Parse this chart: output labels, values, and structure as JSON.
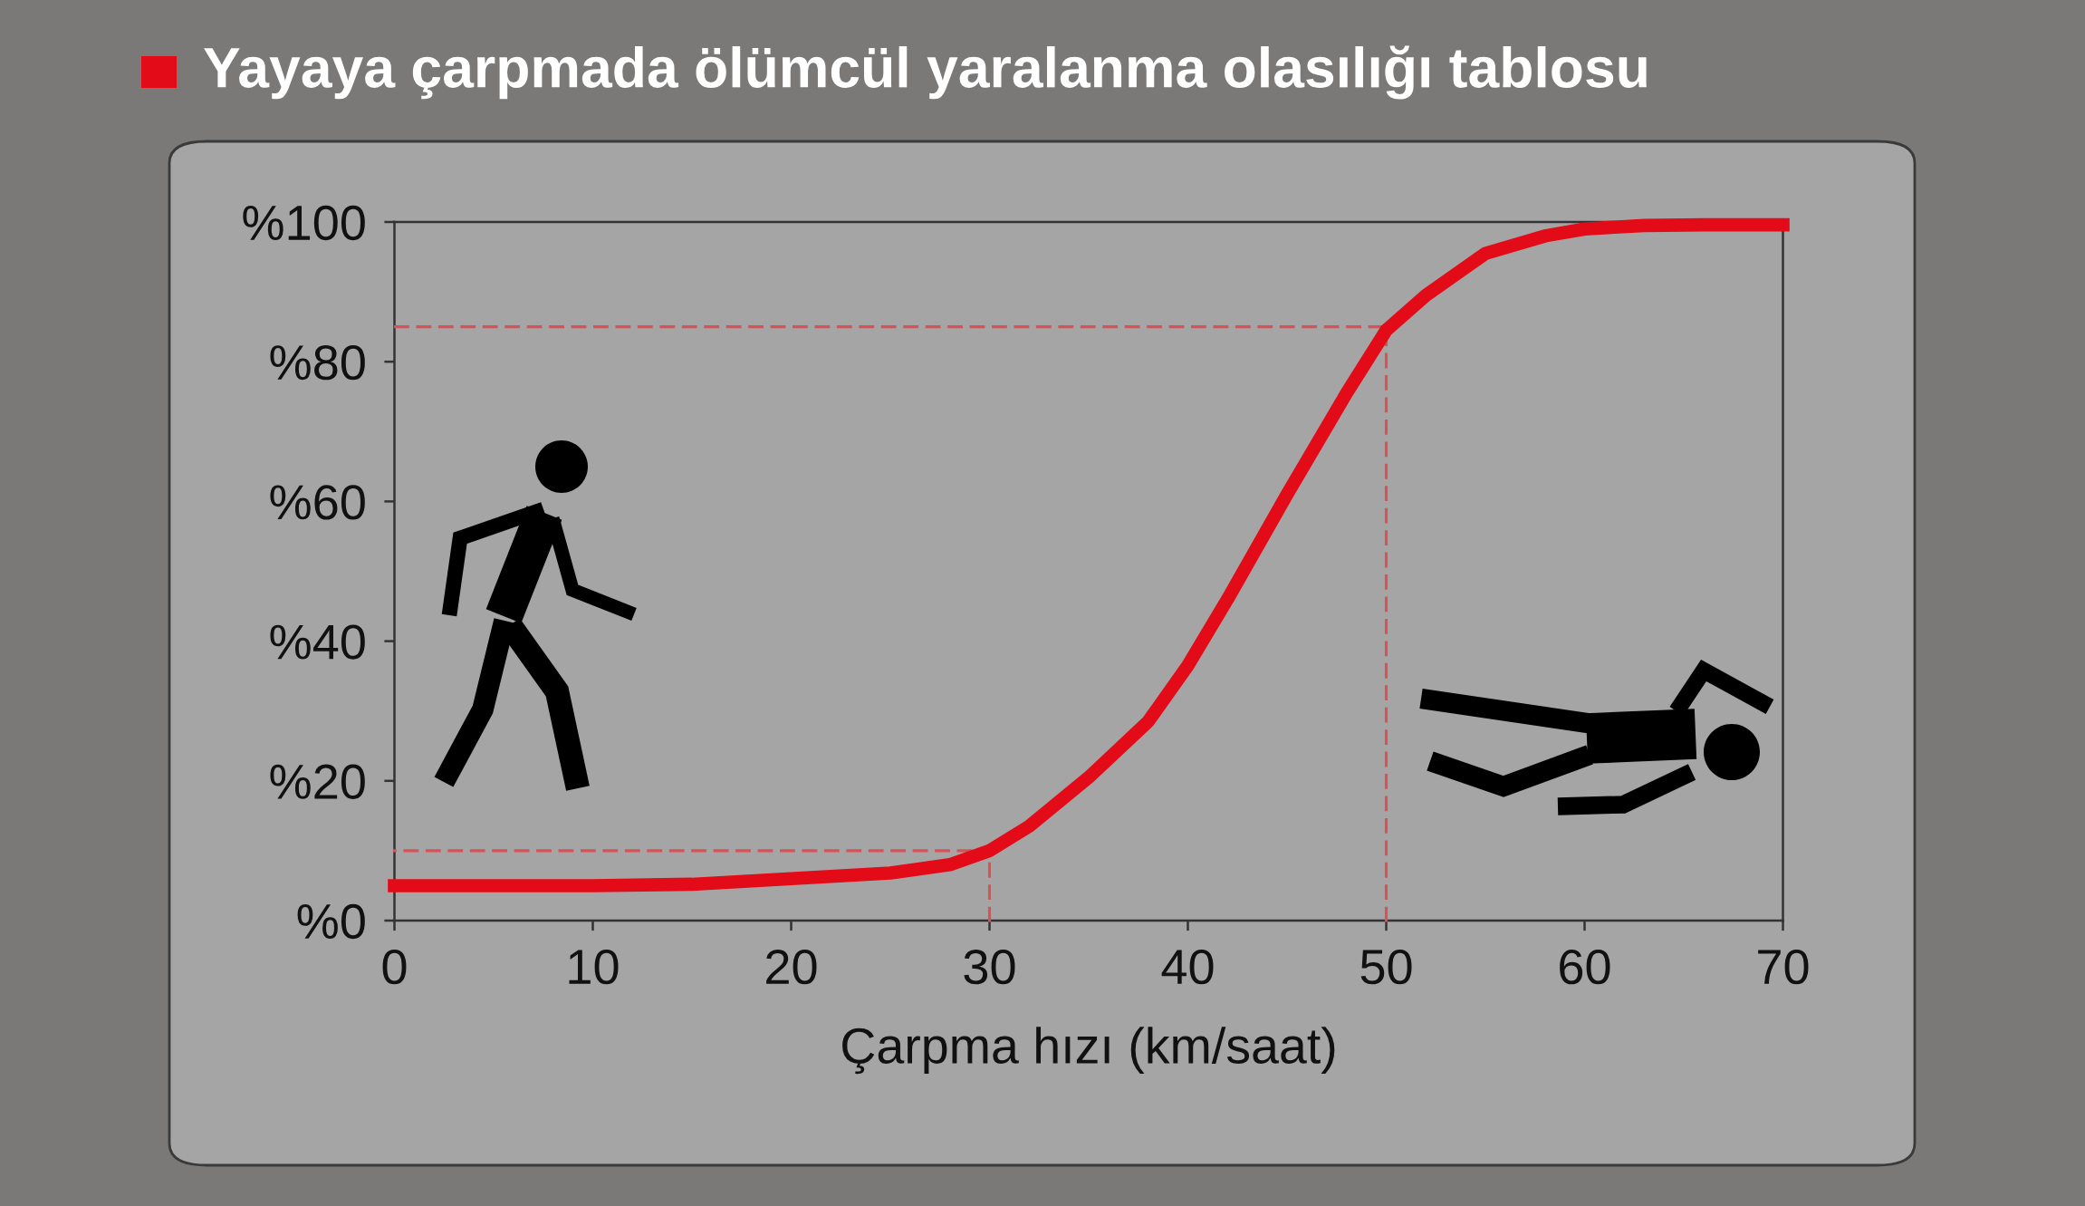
{
  "chart_data": {
    "type": "line",
    "title": "Yayaya çarpmada ölümcül yaralanma olasılığı tablosu",
    "xlabel": "Çarpma hızı (km/saat)",
    "xlim": [
      0,
      70
    ],
    "ylim": [
      0,
      100
    ],
    "xticks": [
      0,
      10,
      20,
      30,
      40,
      50,
      60,
      70
    ],
    "yticks": [
      {
        "value": 0,
        "label": "%0"
      },
      {
        "value": 20,
        "label": "%20"
      },
      {
        "value": 40,
        "label": "%40"
      },
      {
        "value": 60,
        "label": "%60"
      },
      {
        "value": 80,
        "label": "%80"
      },
      {
        "value": 100,
        "label": "%100"
      }
    ],
    "series": [
      {
        "color": "#e30b17",
        "x": [
          0,
          5,
          10,
          15,
          20,
          25,
          28,
          30,
          32,
          35,
          38,
          40,
          42,
          45,
          48,
          50,
          52,
          55,
          58,
          60,
          63,
          66,
          70
        ],
        "values": [
          5,
          5,
          5,
          5.2,
          6,
          6.8,
          8,
          10,
          13.5,
          20.5,
          28.5,
          36.5,
          46,
          61,
          75.5,
          84.5,
          89.5,
          95.5,
          98,
          99,
          99.5,
          99.6,
          99.6
        ]
      },
      {
        "color": "#dc4f55",
        "line_style": "dashed",
        "x": [
          30,
          30,
          0
        ],
        "values": [
          0,
          10,
          10
        ]
      },
      {
        "color": "#dc4f55",
        "line_style": "dashed",
        "x": [
          50,
          50,
          0
        ],
        "values": [
          0,
          85,
          85
        ]
      }
    ]
  }
}
